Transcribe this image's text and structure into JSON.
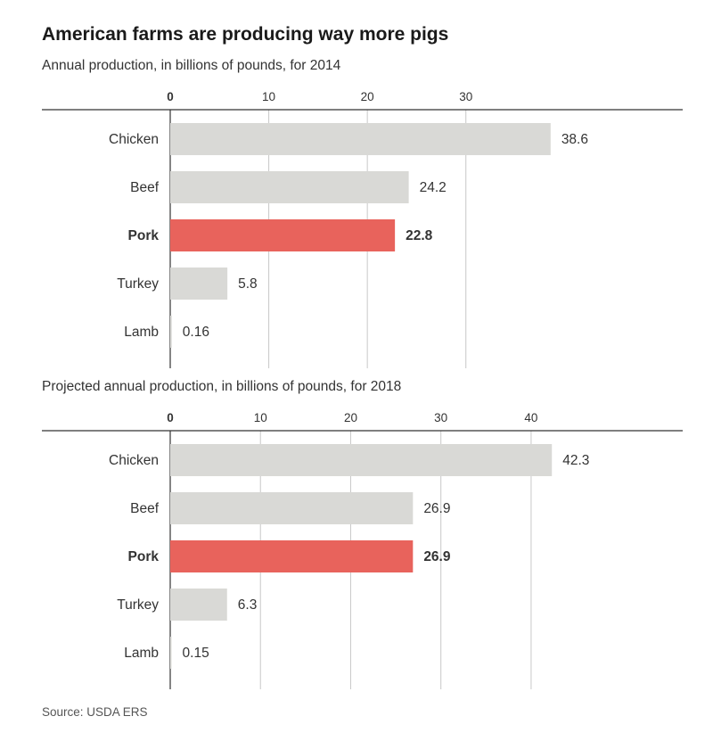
{
  "title": "American farms are producing way more pigs",
  "source": "Source: USDA ERS",
  "colors": {
    "bar": "#d9d9d6",
    "highlight": "#e8635c",
    "grid": "#c8c8c8",
    "axis": "#333333"
  },
  "chart_data": [
    {
      "type": "bar",
      "orientation": "horizontal",
      "subtitle": "Annual production, in billions of pounds, for 2014",
      "categories": [
        "Chicken",
        "Beef",
        "Pork",
        "Turkey",
        "Lamb"
      ],
      "values": [
        38.6,
        24.2,
        22.8,
        5.8,
        0.16
      ],
      "value_labels": [
        "38.6",
        "24.2",
        "22.8",
        "5.8",
        "0.16"
      ],
      "highlight": "Pork",
      "ticks": [
        0,
        10,
        20,
        30
      ],
      "xlim": [
        0,
        52
      ]
    },
    {
      "type": "bar",
      "orientation": "horizontal",
      "subtitle": "Projected annual production, in billions of pounds, for 2018",
      "categories": [
        "Chicken",
        "Beef",
        "Pork",
        "Turkey",
        "Lamb"
      ],
      "values": [
        42.3,
        26.9,
        26.9,
        6.3,
        0.15
      ],
      "value_labels": [
        "42.3",
        "26.9",
        "26.9",
        "6.3",
        "0.15"
      ],
      "highlight": "Pork",
      "ticks": [
        0,
        10,
        20,
        30,
        40
      ],
      "xlim": [
        0,
        56.8
      ]
    }
  ]
}
